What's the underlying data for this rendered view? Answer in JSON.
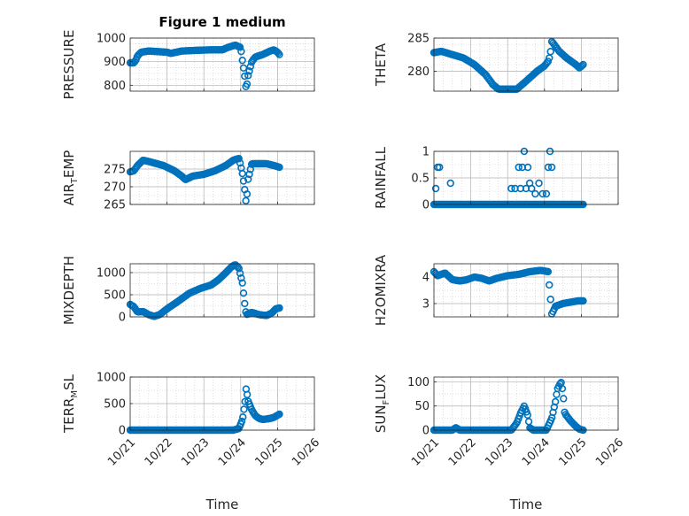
{
  "figure": {
    "title": "Figure 1 medium",
    "x_tick_labels": [
      "10/21",
      "10/22",
      "10/23",
      "10/24",
      "10/25",
      "10/26"
    ],
    "x_label": "Time",
    "marker_color": "#0072BD",
    "grid_color": "#c8c8c8",
    "axis_color": "#262626"
  },
  "chart_data": [
    {
      "type": "scatter",
      "ylabel": "PRESSURE",
      "title": "Figure 1 medium",
      "xlim": [
        0,
        5
      ],
      "ylim": [
        775,
        1000
      ],
      "yticks": [
        800,
        900,
        1000
      ],
      "x_minor": true,
      "y_minor": [
        825,
        850,
        875,
        925,
        950,
        975
      ],
      "anchors": [
        [
          0,
          895
        ],
        [
          0.1,
          895
        ],
        [
          0.15,
          905
        ],
        [
          0.2,
          925
        ],
        [
          0.3,
          940
        ],
        [
          0.5,
          945
        ],
        [
          0.8,
          942
        ],
        [
          1.0,
          940
        ],
        [
          1.1,
          935
        ],
        [
          1.4,
          945
        ],
        [
          1.8,
          948
        ],
        [
          2.2,
          950
        ],
        [
          2.5,
          950
        ],
        [
          2.65,
          960
        ],
        [
          2.85,
          970
        ],
        [
          3.0,
          960
        ],
        [
          3.05,
          900
        ],
        [
          3.1,
          850
        ],
        [
          3.15,
          780
        ],
        [
          3.2,
          840
        ],
        [
          3.3,
          900
        ],
        [
          3.4,
          920
        ],
        [
          3.6,
          930
        ],
        [
          3.8,
          945
        ],
        [
          3.9,
          950
        ],
        [
          4.0,
          940
        ],
        [
          4.05,
          930
        ]
      ],
      "xrange": [
        0.0,
        4.05
      ],
      "count": 130
    },
    {
      "type": "scatter",
      "ylabel": "THETA",
      "xlim": [
        0,
        5
      ],
      "ylim": [
        277,
        285
      ],
      "yticks": [
        280,
        285
      ],
      "x_minor": true,
      "y_minor": [
        281,
        282,
        283,
        284
      ],
      "anchors": [
        [
          0,
          282.8
        ],
        [
          0.2,
          283.0
        ],
        [
          0.5,
          282.5
        ],
        [
          0.8,
          282.0
        ],
        [
          1.1,
          281.0
        ],
        [
          1.4,
          279.5
        ],
        [
          1.6,
          278.0
        ],
        [
          1.75,
          277.3
        ],
        [
          2.0,
          277.3
        ],
        [
          2.25,
          277.3
        ],
        [
          2.5,
          278.5
        ],
        [
          2.8,
          280.0
        ],
        [
          3.0,
          280.8
        ],
        [
          3.1,
          281.5
        ],
        [
          3.15,
          282.3
        ],
        [
          3.2,
          284.5
        ],
        [
          3.4,
          283.0
        ],
        [
          3.6,
          282.0
        ],
        [
          3.85,
          281.0
        ],
        [
          3.95,
          280.5
        ],
        [
          4.05,
          281.0
        ]
      ],
      "xrange": [
        0.0,
        4.05
      ],
      "count": 120
    },
    {
      "type": "scatter",
      "ylabel": "AIR_TEMP",
      "xlim": [
        0,
        5
      ],
      "ylim": [
        265,
        280
      ],
      "yticks": [
        265,
        270,
        275
      ],
      "x_minor": true,
      "y_minor": [
        267.5,
        272.5,
        277.5
      ],
      "anchors": [
        [
          0,
          274.2
        ],
        [
          0.1,
          274.5
        ],
        [
          0.2,
          276.0
        ],
        [
          0.35,
          277.5
        ],
        [
          0.55,
          277.0
        ],
        [
          0.9,
          276.0
        ],
        [
          1.2,
          274.5
        ],
        [
          1.4,
          273.0
        ],
        [
          1.5,
          272.0
        ],
        [
          1.7,
          273.0
        ],
        [
          2.0,
          273.5
        ],
        [
          2.3,
          274.5
        ],
        [
          2.6,
          276.0
        ],
        [
          2.8,
          277.5
        ],
        [
          2.95,
          278.0
        ],
        [
          3.0,
          276.0
        ],
        [
          3.05,
          273.5
        ],
        [
          3.1,
          270.0
        ],
        [
          3.15,
          265.0
        ],
        [
          3.2,
          272.0
        ],
        [
          3.3,
          276.5
        ],
        [
          3.5,
          276.5
        ],
        [
          3.7,
          276.5
        ],
        [
          3.9,
          276.0
        ],
        [
          4.05,
          275.5
        ]
      ],
      "xrange": [
        0.0,
        4.05
      ],
      "count": 130
    },
    {
      "type": "scatter",
      "ylabel": "RAINFALL",
      "xlim": [
        0,
        5
      ],
      "ylim": [
        0,
        1
      ],
      "yticks": [
        0,
        0.5,
        1
      ],
      "tick_labels": [
        "0",
        "0.5",
        "1"
      ],
      "x_minor": true,
      "y_minor": [
        0.25,
        0.75
      ],
      "base_value": 0,
      "xrange": [
        0.0,
        4.05
      ],
      "count": 120,
      "extra_points": [
        [
          0.05,
          0.3
        ],
        [
          0.1,
          0.7
        ],
        [
          0.15,
          0.7
        ],
        [
          0.45,
          0.4
        ],
        [
          2.1,
          0.3
        ],
        [
          2.2,
          0.3
        ],
        [
          2.3,
          0.7
        ],
        [
          2.35,
          0.3
        ],
        [
          2.4,
          0.7
        ],
        [
          2.45,
          1.0
        ],
        [
          2.5,
          0.3
        ],
        [
          2.55,
          0.7
        ],
        [
          2.6,
          0.4
        ],
        [
          2.65,
          0.3
        ],
        [
          2.75,
          0.2
        ],
        [
          2.85,
          0.4
        ],
        [
          2.95,
          0.2
        ],
        [
          3.05,
          0.2
        ],
        [
          3.1,
          0.7
        ],
        [
          3.15,
          1.0
        ],
        [
          3.2,
          0.7
        ]
      ]
    },
    {
      "type": "scatter",
      "ylabel": "MIXDEPTH",
      "xlim": [
        0,
        5
      ],
      "ylim": [
        0,
        1200
      ],
      "yticks": [
        0,
        500,
        1000
      ],
      "x_minor": true,
      "y_minor": [
        250,
        750
      ],
      "anchors": [
        [
          0,
          280
        ],
        [
          0.1,
          230
        ],
        [
          0.2,
          110
        ],
        [
          0.35,
          120
        ],
        [
          0.5,
          50
        ],
        [
          0.65,
          10
        ],
        [
          0.8,
          50
        ],
        [
          1.0,
          180
        ],
        [
          1.3,
          350
        ],
        [
          1.6,
          530
        ],
        [
          1.9,
          640
        ],
        [
          2.2,
          720
        ],
        [
          2.4,
          840
        ],
        [
          2.6,
          1000
        ],
        [
          2.75,
          1130
        ],
        [
          2.85,
          1180
        ],
        [
          2.95,
          1100
        ],
        [
          3.05,
          750
        ],
        [
          3.1,
          350
        ],
        [
          3.15,
          50
        ],
        [
          3.3,
          100
        ],
        [
          3.5,
          50
        ],
        [
          3.7,
          30
        ],
        [
          3.85,
          90
        ],
        [
          3.95,
          180
        ],
        [
          4.05,
          200
        ]
      ],
      "xrange": [
        0.0,
        4.05
      ],
      "count": 130
    },
    {
      "type": "scatter",
      "ylabel": "H2OMIXRA",
      "xlim": [
        0,
        5
      ],
      "ylim": [
        2.5,
        4.5
      ],
      "yticks": [
        3,
        4
      ],
      "x_minor": true,
      "y_minor": [
        3.25,
        3.5,
        3.75,
        4.25
      ],
      "anchors": [
        [
          0,
          4.2
        ],
        [
          0.1,
          4.05
        ],
        [
          0.3,
          4.15
        ],
        [
          0.5,
          3.9
        ],
        [
          0.7,
          3.85
        ],
        [
          0.9,
          3.9
        ],
        [
          1.1,
          4.0
        ],
        [
          1.3,
          3.95
        ],
        [
          1.5,
          3.85
        ],
        [
          1.7,
          3.95
        ],
        [
          2.0,
          4.05
        ],
        [
          2.3,
          4.1
        ],
        [
          2.6,
          4.2
        ],
        [
          2.9,
          4.25
        ],
        [
          3.1,
          4.2
        ],
        [
          3.15,
          3.4
        ],
        [
          3.2,
          2.6
        ],
        [
          3.3,
          2.9
        ],
        [
          3.5,
          3.0
        ],
        [
          3.7,
          3.05
        ],
        [
          3.9,
          3.1
        ],
        [
          4.05,
          3.1
        ]
      ],
      "xrange": [
        0.0,
        4.05
      ],
      "count": 120
    },
    {
      "type": "scatter",
      "ylabel": "TERR_MSL",
      "xlim": [
        0,
        5
      ],
      "ylim": [
        0,
        1000
      ],
      "yticks": [
        0,
        500,
        1000
      ],
      "x_minor": true,
      "y_minor": [
        250,
        750
      ],
      "anchors": [
        [
          0,
          0
        ],
        [
          2.8,
          0
        ],
        [
          2.95,
          30
        ],
        [
          3.05,
          200
        ],
        [
          3.12,
          550
        ],
        [
          3.15,
          800
        ],
        [
          3.2,
          550
        ],
        [
          3.3,
          380
        ],
        [
          3.4,
          270
        ],
        [
          3.5,
          220
        ],
        [
          3.6,
          200
        ],
        [
          3.8,
          220
        ],
        [
          3.9,
          240
        ],
        [
          4.05,
          300
        ]
      ],
      "xrange": [
        0.0,
        4.05
      ],
      "count": 140
    },
    {
      "type": "scatter",
      "ylabel": "SUN_FLUX",
      "xlim": [
        0,
        5
      ],
      "ylim": [
        0,
        110
      ],
      "yticks": [
        0,
        50,
        100
      ],
      "x_minor": true,
      "y_minor": [
        25,
        75
      ],
      "anchors": [
        [
          0,
          0
        ],
        [
          0.5,
          0
        ],
        [
          0.6,
          5
        ],
        [
          0.7,
          0
        ],
        [
          1.9,
          0
        ],
        [
          2.1,
          0
        ],
        [
          2.25,
          15
        ],
        [
          2.35,
          35
        ],
        [
          2.45,
          50
        ],
        [
          2.55,
          30
        ],
        [
          2.6,
          5
        ],
        [
          2.7,
          0
        ],
        [
          3.05,
          0
        ],
        [
          3.2,
          25
        ],
        [
          3.3,
          60
        ],
        [
          3.35,
          85
        ],
        [
          3.45,
          100
        ],
        [
          3.5,
          80
        ],
        [
          3.55,
          35
        ],
        [
          3.7,
          20
        ],
        [
          3.85,
          8
        ],
        [
          3.95,
          2
        ],
        [
          4.05,
          0
        ]
      ],
      "xrange": [
        0.0,
        4.05
      ],
      "count": 130
    }
  ]
}
